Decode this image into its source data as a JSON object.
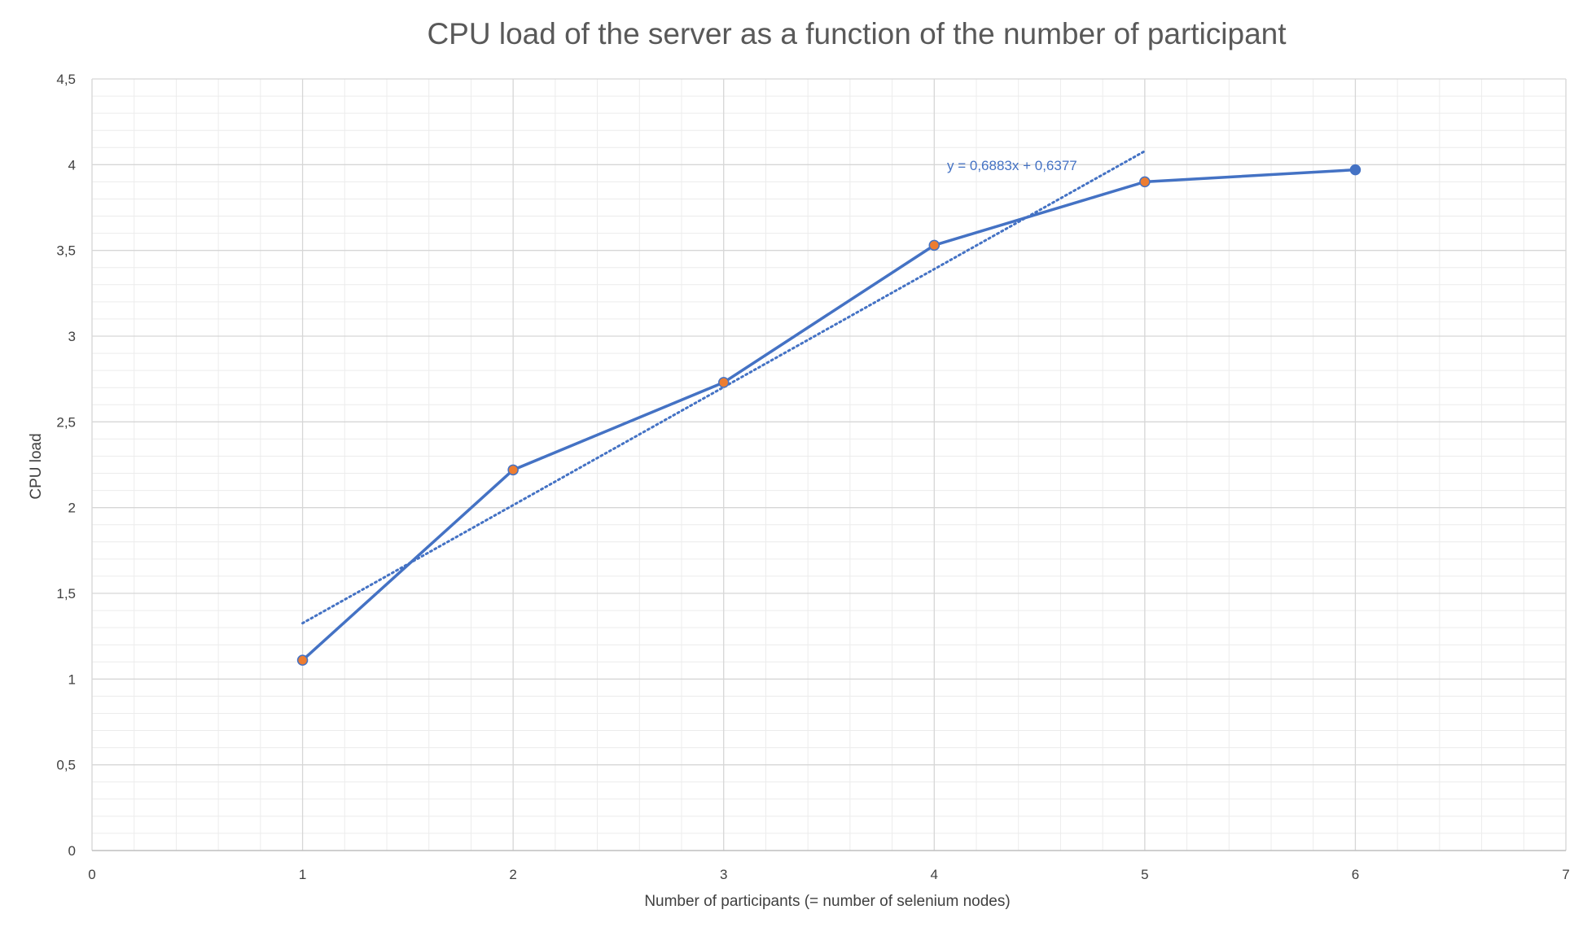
{
  "chart_data": {
    "type": "scatter",
    "title": "CPU load of the server as a function of the number of participant",
    "xlabel": "Number of participants (= number of selenium nodes)",
    "ylabel": "CPU load",
    "xlim": [
      0,
      7
    ],
    "ylim": [
      0,
      4.5
    ],
    "x_ticks": [
      "0",
      "1",
      "2",
      "3",
      "4",
      "5",
      "6",
      "7"
    ],
    "y_ticks": [
      "0",
      "0,5",
      "1",
      "1,5",
      "2",
      "2,5",
      "3",
      "3,5",
      "4",
      "4,5"
    ],
    "grid": true,
    "series": [
      {
        "x": [
          1,
          2,
          3,
          4,
          5,
          6
        ],
        "y": [
          1.11,
          2.22,
          2.73,
          3.53,
          3.9,
          3.97
        ],
        "line_color": "#4472C4",
        "marker_colors": [
          "#ED7D31",
          "#ED7D31",
          "#ED7D31",
          "#ED7D31",
          "#ED7D31",
          "#4472C4"
        ]
      }
    ],
    "trendline": {
      "type": "linear",
      "slope": 0.6883,
      "intercept": 0.6377,
      "x_range": [
        1,
        5
      ],
      "color": "#4472C4",
      "style": "dotted",
      "equation_label": "y = 0,6883x + 0,6377"
    }
  }
}
